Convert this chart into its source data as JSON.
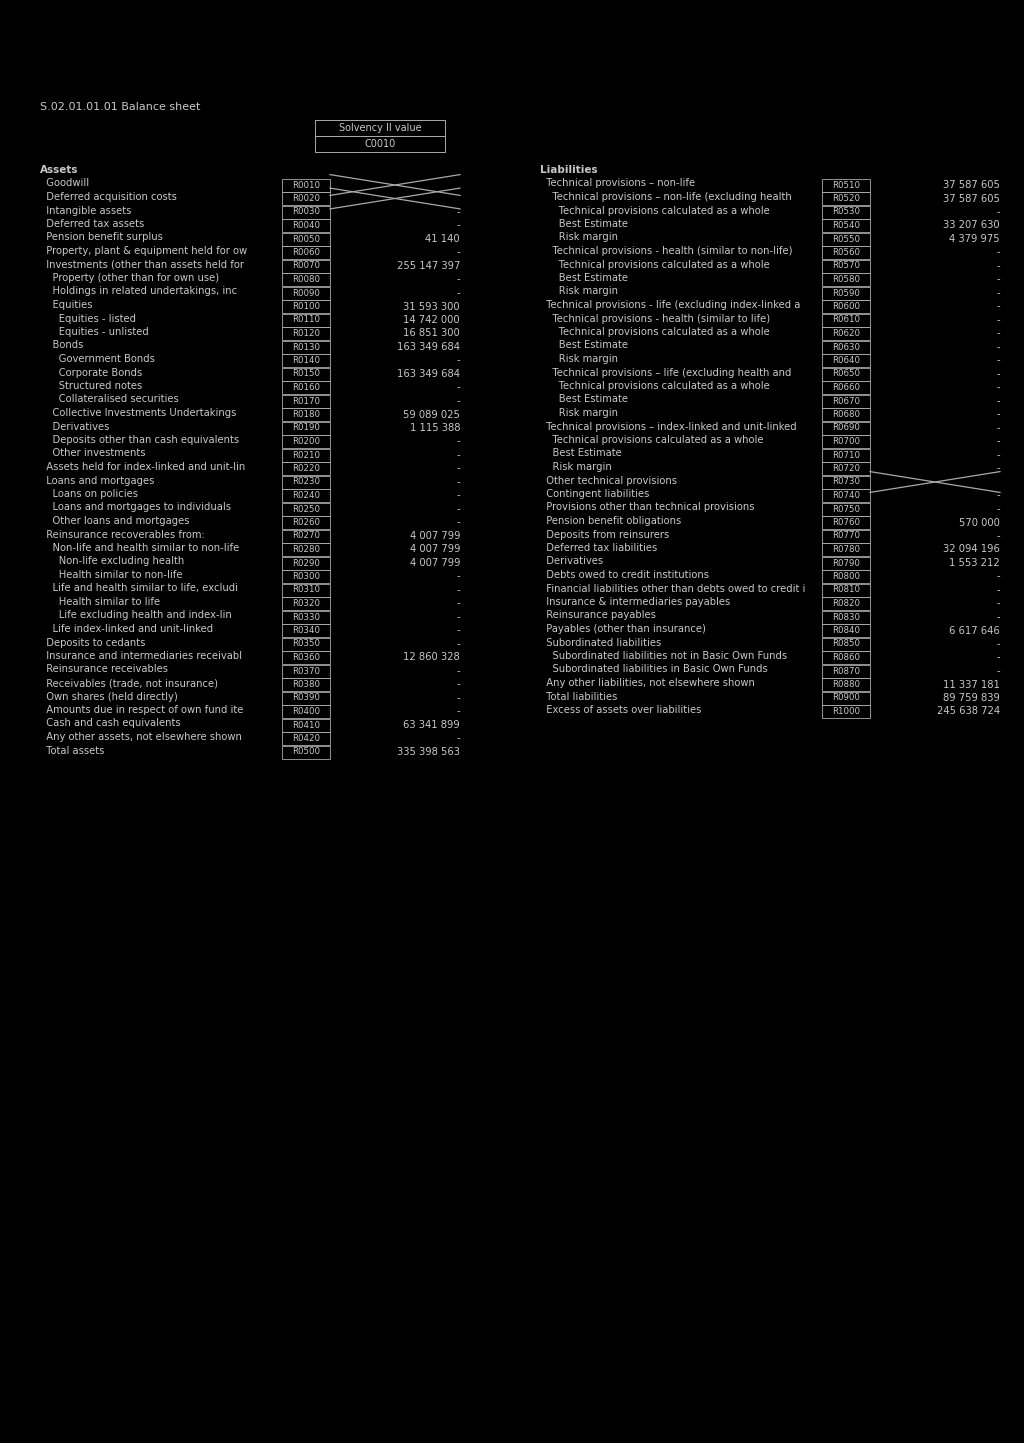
{
  "title": "S.02.01.01.01 Balance sheet",
  "header_col": "Solvency II value",
  "header_sub": "C0010",
  "bg_color": "#000000",
  "text_color": "#c8c8c8",
  "box_color": "#aaaaaa",
  "assets_rows": [
    [
      "Assets",
      "",
      ""
    ],
    [
      "  Goodwill",
      "R0010",
      "X"
    ],
    [
      "  Deferred acquisition costs",
      "R0020",
      "X"
    ],
    [
      "  Intangible assets",
      "R0030",
      "-"
    ],
    [
      "  Deferred tax assets",
      "R0040",
      "-"
    ],
    [
      "  Pension benefit surplus",
      "R0050",
      "41 140"
    ],
    [
      "  Property, plant & equipment held for ow",
      "R0060",
      "-"
    ],
    [
      "  Investments (other than assets held for",
      "R0070",
      "255 147 397"
    ],
    [
      "    Property (other than for own use)",
      "R0080",
      "-"
    ],
    [
      "    Holdings in related undertakings, inc",
      "R0090",
      "-"
    ],
    [
      "    Equities",
      "R0100",
      "31 593 300"
    ],
    [
      "      Equities - listed",
      "R0110",
      "14 742 000"
    ],
    [
      "      Equities - unlisted",
      "R0120",
      "16 851 300"
    ],
    [
      "    Bonds",
      "R0130",
      "163 349 684"
    ],
    [
      "      Government Bonds",
      "R0140",
      "-"
    ],
    [
      "      Corporate Bonds",
      "R0150",
      "163 349 684"
    ],
    [
      "      Structured notes",
      "R0160",
      "-"
    ],
    [
      "      Collateralised securities",
      "R0170",
      "-"
    ],
    [
      "    Collective Investments Undertakings",
      "R0180",
      "59 089 025"
    ],
    [
      "    Derivatives",
      "R0190",
      "1 115 388"
    ],
    [
      "    Deposits other than cash equivalents",
      "R0200",
      "-"
    ],
    [
      "    Other investments",
      "R0210",
      "-"
    ],
    [
      "  Assets held for index-linked and unit-lin",
      "R0220",
      "-"
    ],
    [
      "  Loans and mortgages",
      "R0230",
      "-"
    ],
    [
      "    Loans on policies",
      "R0240",
      "-"
    ],
    [
      "    Loans and mortgages to individuals",
      "R0250",
      "-"
    ],
    [
      "    Other loans and mortgages",
      "R0260",
      "-"
    ],
    [
      "  Reinsurance recoverables from:",
      "R0270",
      "4 007 799"
    ],
    [
      "    Non-life and health similar to non-life",
      "R0280",
      "4 007 799"
    ],
    [
      "      Non-life excluding health",
      "R0290",
      "4 007 799"
    ],
    [
      "      Health similar to non-life",
      "R0300",
      "-"
    ],
    [
      "    Life and health similar to life, excludi",
      "R0310",
      "-"
    ],
    [
      "      Health similar to life",
      "R0320",
      "-"
    ],
    [
      "      Life excluding health and index-lin",
      "R0330",
      "-"
    ],
    [
      "    Life index-linked and unit-linked",
      "R0340",
      "-"
    ],
    [
      "  Deposits to cedants",
      "R0350",
      "-"
    ],
    [
      "  Insurance and intermediaries receivabl",
      "R0360",
      "12 860 328"
    ],
    [
      "  Reinsurance receivables",
      "R0370",
      "-"
    ],
    [
      "  Receivables (trade, not insurance)",
      "R0380",
      "-"
    ],
    [
      "  Own shares (held directly)",
      "R0390",
      "-"
    ],
    [
      "  Amounts due in respect of own fund ite",
      "R0400",
      "-"
    ],
    [
      "  Cash and cash equivalents",
      "R0410",
      "63 341 899"
    ],
    [
      "  Any other assets, not elsewhere shown",
      "R0420",
      "-"
    ],
    [
      "  Total assets",
      "R0500",
      "335 398 563"
    ]
  ],
  "liabilities_rows": [
    [
      "Liabilities",
      "",
      ""
    ],
    [
      "  Technical provisions – non-life",
      "R0510",
      "37 587 605"
    ],
    [
      "    Technical provisions – non-life (excluding health",
      "R0520",
      "37 587 605"
    ],
    [
      "      Technical provisions calculated as a whole",
      "R0530",
      "-"
    ],
    [
      "      Best Estimate",
      "R0540",
      "33 207 630"
    ],
    [
      "      Risk margin",
      "R0550",
      "4 379 975"
    ],
    [
      "    Technical provisions - health (similar to non-life)",
      "R0560",
      "-"
    ],
    [
      "      Technical provisions calculated as a whole",
      "R0570",
      "-"
    ],
    [
      "      Best Estimate",
      "R0580",
      "-"
    ],
    [
      "      Risk margin",
      "R0590",
      "-"
    ],
    [
      "  Technical provisions - life (excluding index-linked a",
      "R0600",
      "-"
    ],
    [
      "    Technical provisions - health (similar to life)",
      "R0610",
      "-"
    ],
    [
      "      Technical provisions calculated as a whole",
      "R0620",
      "-"
    ],
    [
      "      Best Estimate",
      "R0630",
      "-"
    ],
    [
      "      Risk margin",
      "R0640",
      "-"
    ],
    [
      "    Technical provisions – life (excluding health and",
      "R0650",
      "-"
    ],
    [
      "      Technical provisions calculated as a whole",
      "R0660",
      "-"
    ],
    [
      "      Best Estimate",
      "R0670",
      "-"
    ],
    [
      "      Risk margin",
      "R0680",
      "-"
    ],
    [
      "  Technical provisions – index-linked and unit-linked",
      "R0690",
      "-"
    ],
    [
      "    Technical provisions calculated as a whole",
      "R0700",
      "-"
    ],
    [
      "    Best Estimate",
      "R0710",
      "-"
    ],
    [
      "    Risk margin",
      "R0720",
      "-"
    ],
    [
      "  Other technical provisions",
      "R0730",
      "X"
    ],
    [
      "  Contingent liabilities",
      "R0740",
      "-"
    ],
    [
      "  Provisions other than technical provisions",
      "R0750",
      "-"
    ],
    [
      "  Pension benefit obligations",
      "R0760",
      "570 000"
    ],
    [
      "  Deposits from reinsurers",
      "R0770",
      "-"
    ],
    [
      "  Deferred tax liabilities",
      "R0780",
      "32 094 196"
    ],
    [
      "  Derivatives",
      "R0790",
      "1 553 212"
    ],
    [
      "  Debts owed to credit institutions",
      "R0800",
      "-"
    ],
    [
      "  Financial liabilities other than debts owed to credit i",
      "R0810",
      "-"
    ],
    [
      "  Insurance & intermediaries payables",
      "R0820",
      "-"
    ],
    [
      "  Reinsurance payables",
      "R0830",
      "-"
    ],
    [
      "  Payables (other than insurance)",
      "R0840",
      "6 617 646"
    ],
    [
      "  Subordinated liabilities",
      "R0850",
      "-"
    ],
    [
      "    Subordinated liabilities not in Basic Own Funds",
      "R0860",
      "-"
    ],
    [
      "    Subordinated liabilities in Basic Own Funds",
      "R0870",
      "-"
    ],
    [
      "  Any other liabilities, not elsewhere shown",
      "R0880",
      "11 337 181"
    ],
    [
      "  Total liabilities",
      "R0900",
      "89 759 839"
    ],
    [
      "  Excess of assets over liabilities",
      "R1000",
      "245 638 724"
    ]
  ]
}
